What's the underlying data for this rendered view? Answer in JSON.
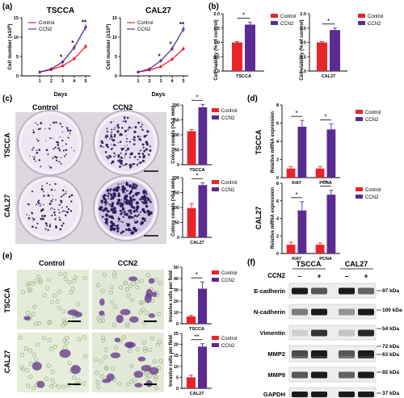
{
  "panels": {
    "a": "(a)",
    "b": "(b)",
    "c": "(c)",
    "d": "(d)",
    "e": "(e)",
    "f": "(f)"
  },
  "legend": {
    "control": "Control",
    "ccn2": "CCN2"
  },
  "colors": {
    "control": "#e8242b",
    "ccn2": "#5b2b91",
    "black": "#000000"
  },
  "cell_labels": {
    "tscca": "TSCCA",
    "cal27": "CAL27"
  },
  "photo_headers": {
    "control": "Control",
    "ccn2": "CCN2"
  },
  "sig": {
    "one": "*",
    "two": "**"
  },
  "panel_a": {
    "ylabel": "Cell number (x10",
    "ylabel_sup": "5",
    "ylabel_end": ")",
    "xlabel": "Days",
    "yticks": [
      "0",
      "5",
      "10",
      "15"
    ],
    "xticks": [
      "1",
      "2",
      "3",
      "4",
      "5"
    ]
  },
  "panel_b": {
    "ylabel": "Cell viability (% of control)",
    "yticks": [
      "0.0",
      "0.5",
      "1.0",
      "1.5",
      "2.0"
    ]
  },
  "panel_c": {
    "ylabel": "Colony counts (>0.1 mm)",
    "yticks": [
      "0",
      "50",
      "100",
      "150",
      "200"
    ]
  },
  "panel_d": {
    "ylabel": "Relative mRNA expression",
    "yticks_tscca": [
      "0",
      "2",
      "4",
      "6",
      "8"
    ],
    "yticks_cal27": [
      "0",
      "2",
      "4",
      "6",
      "8"
    ],
    "genes": [
      "Ki67",
      "PCNA"
    ]
  },
  "panel_e": {
    "ylabel": "Invasive cells per field",
    "yticks_tscca": [
      "0",
      "10",
      "20",
      "30",
      "40",
      "50"
    ],
    "yticks_cal27": [
      "0",
      "5",
      "10",
      "15",
      "20",
      "25"
    ]
  },
  "panel_f": {
    "header_tscca": "TSCCA",
    "header_cal27": "CAL27",
    "ccn2_label": "CCN2",
    "signs": [
      "–",
      "+",
      "–",
      "+"
    ],
    "proteins": [
      "E-cadherin",
      "N-cadherin",
      "Vimentin",
      "MMP2",
      "MMP9",
      "GAPDH"
    ],
    "kda": [
      "97 kDa",
      "100 kDa",
      "54 kDa",
      "72 kDa",
      "63 kDa",
      "92 kDa",
      "37 kDa"
    ]
  },
  "chart_data": [
    {
      "type": "line",
      "panel": "a",
      "title": "TSCCA",
      "x": [
        1,
        2,
        3,
        4,
        5
      ],
      "series": [
        {
          "name": "Control",
          "values": [
            1.0,
            1.6,
            2.6,
            4.4,
            7.6
          ]
        },
        {
          "name": "CCN2",
          "values": [
            1.0,
            1.8,
            3.6,
            7.3,
            12.6
          ]
        }
      ],
      "significance": [
        "",
        "",
        "*",
        "*",
        "**"
      ],
      "ylim": [
        0,
        15
      ],
      "xlabel": "Days",
      "ylabel": "Cell number (x10^5)"
    },
    {
      "type": "line",
      "panel": "a",
      "title": "CAL27",
      "x": [
        1,
        2,
        3,
        4,
        5
      ],
      "series": [
        {
          "name": "Control",
          "values": [
            1.0,
            1.5,
            2.4,
            4.3,
            7.0
          ]
        },
        {
          "name": "CCN2",
          "values": [
            1.0,
            1.8,
            3.9,
            7.0,
            12.1
          ]
        }
      ],
      "significance": [
        "",
        "",
        "*",
        "*",
        "**"
      ],
      "ylim": [
        0,
        15
      ],
      "xlabel": "Days",
      "ylabel": "Cell number (x10^5)"
    },
    {
      "type": "bar",
      "panel": "b",
      "categories": [
        "TSCCA"
      ],
      "series": [
        {
          "name": "Control",
          "values": [
            1.0
          ],
          "err": [
            0.03
          ]
        },
        {
          "name": "CCN2",
          "values": [
            1.62
          ],
          "err": [
            0.08
          ]
        }
      ],
      "significance": [
        "*"
      ],
      "ylim": [
        0,
        2
      ],
      "ylabel": "Cell viability (% of control)"
    },
    {
      "type": "bar",
      "panel": "b",
      "categories": [
        "CAL27"
      ],
      "series": [
        {
          "name": "Control",
          "values": [
            1.0
          ],
          "err": [
            0.03
          ]
        },
        {
          "name": "CCN2",
          "values": [
            1.43
          ],
          "err": [
            0.07
          ]
        }
      ],
      "significance": [
        "*"
      ],
      "ylim": [
        0,
        2
      ],
      "ylabel": "Cell viability (% of control)"
    },
    {
      "type": "bar",
      "panel": "c",
      "categories": [
        "TSCCA"
      ],
      "series": [
        {
          "name": "Control",
          "values": [
            112
          ],
          "err": [
            6
          ]
        },
        {
          "name": "CCN2",
          "values": [
            192
          ],
          "err": [
            10
          ]
        }
      ],
      "significance": [
        "*"
      ],
      "ylim": [
        0,
        200
      ],
      "ylabel": "Colony counts (>0.1 mm)"
    },
    {
      "type": "bar",
      "panel": "c",
      "categories": [
        "CAL27"
      ],
      "series": [
        {
          "name": "Control",
          "values": [
            98
          ],
          "err": [
            15
          ]
        },
        {
          "name": "CCN2",
          "values": [
            175
          ],
          "err": [
            8
          ]
        }
      ],
      "significance": [
        "*"
      ],
      "ylim": [
        0,
        200
      ],
      "ylabel": "Colony counts (>0.1 mm)"
    },
    {
      "type": "bar",
      "panel": "d",
      "title": "TSCCA",
      "categories": [
        "Ki67",
        "PCNA"
      ],
      "series": [
        {
          "name": "Control",
          "values": [
            1.0,
            1.0
          ],
          "err": [
            0.2,
            0.2
          ]
        },
        {
          "name": "CCN2",
          "values": [
            5.6,
            5.3
          ],
          "err": [
            0.7,
            0.6
          ]
        }
      ],
      "significance": [
        "*",
        "*"
      ],
      "ylim": [
        0,
        8
      ],
      "ylabel": "Relative mRNA expression"
    },
    {
      "type": "bar",
      "panel": "d",
      "title": "CAL27",
      "categories": [
        "Ki67",
        "PCNA"
      ],
      "series": [
        {
          "name": "Control",
          "values": [
            1.0,
            1.0
          ],
          "err": [
            0.3,
            0.2
          ]
        },
        {
          "name": "CCN2",
          "values": [
            4.9,
            6.7
          ],
          "err": [
            1.0,
            0.5
          ]
        }
      ],
      "significance": [
        "*",
        "**"
      ],
      "ylim": [
        0,
        8
      ],
      "ylabel": "Relative mRNA expression"
    },
    {
      "type": "bar",
      "panel": "e",
      "categories": [
        "TSCCA"
      ],
      "series": [
        {
          "name": "Control",
          "values": [
            6.5
          ],
          "err": [
            1.0
          ]
        },
        {
          "name": "CCN2",
          "values": [
            31
          ],
          "err": [
            6
          ]
        }
      ],
      "significance": [
        "*"
      ],
      "ylim": [
        0,
        50
      ],
      "ylabel": "Invasive cells per field"
    },
    {
      "type": "bar",
      "panel": "e",
      "categories": [
        "CAL27"
      ],
      "series": [
        {
          "name": "Control",
          "values": [
            5
          ],
          "err": [
            1.0
          ]
        },
        {
          "name": "CCN2",
          "values": [
            19
          ],
          "err": [
            1.3
          ]
        }
      ],
      "significance": [
        "**"
      ],
      "ylim": [
        0,
        25
      ],
      "ylabel": "Invasive cells per field"
    }
  ]
}
